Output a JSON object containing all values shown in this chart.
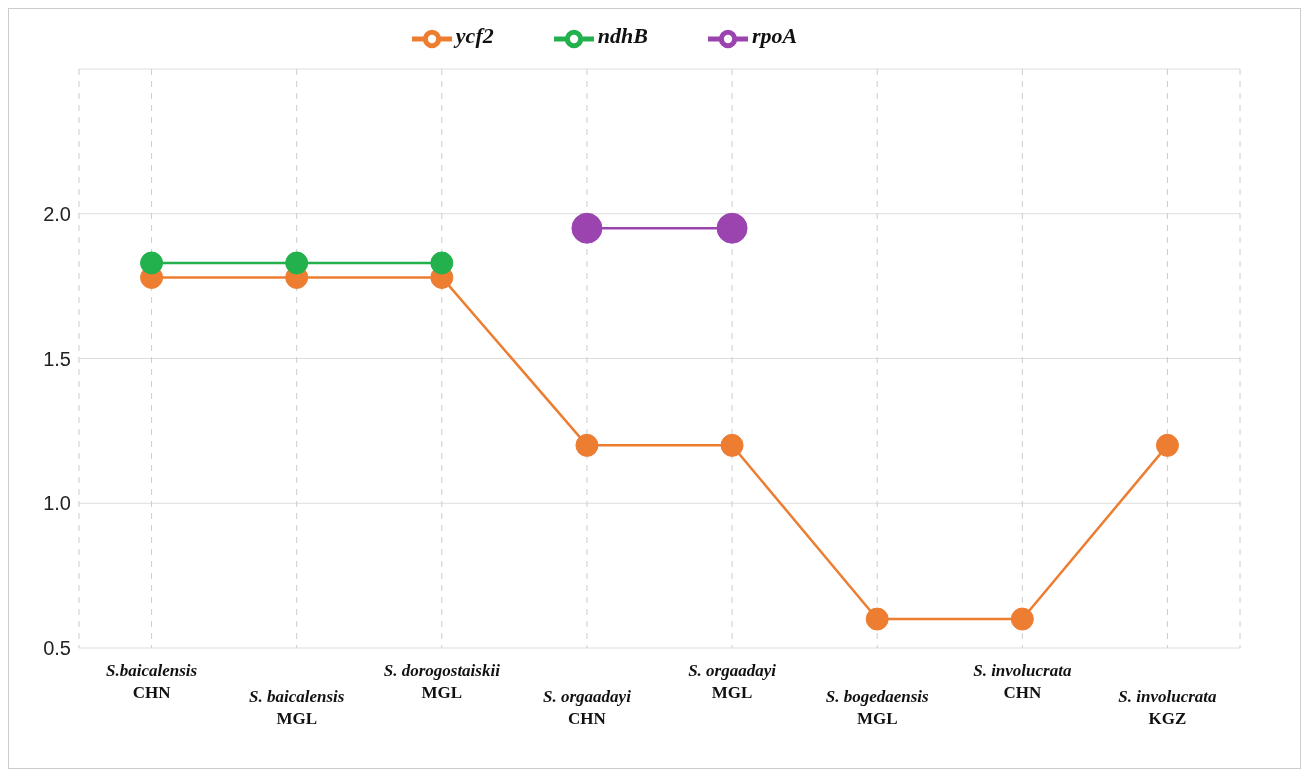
{
  "chart_data": {
    "type": "line",
    "categories": [
      "S.baicalensis\nCHN",
      "S. baicalensis\nMGL",
      "S. dorogostaiskii\nMGL",
      "S. orgaadayi\nCHN",
      "S. orgaadayi\nMGL",
      "S. bogedaensis\nMGL",
      "S. involucrata\nCHN",
      "S. involucrata\nKGZ"
    ],
    "series": [
      {
        "name": "ycf2",
        "color": "#ed7d31",
        "values": [
          1.78,
          1.78,
          1.78,
          1.2,
          1.2,
          0.6,
          0.6,
          1.2
        ]
      },
      {
        "name": "ndhB",
        "color": "#22b14c",
        "values": [
          1.83,
          1.83,
          1.83,
          null,
          null,
          null,
          null,
          null
        ]
      },
      {
        "name": "rpoA",
        "color": "#9b44b0",
        "values": [
          null,
          null,
          null,
          1.95,
          1.95,
          null,
          null,
          null
        ]
      }
    ],
    "ylim": [
      0.5,
      2.5
    ],
    "yticks": [
      {
        "value": 0.5,
        "label": "0.5"
      },
      {
        "value": 1,
        "label": "1.0"
      },
      {
        "value": 1.5,
        "label": "1.5"
      },
      {
        "value": 2,
        "label": "2.0"
      }
    ],
    "grid": true,
    "legend": "top",
    "marker": "circle",
    "line_style": "solid"
  }
}
